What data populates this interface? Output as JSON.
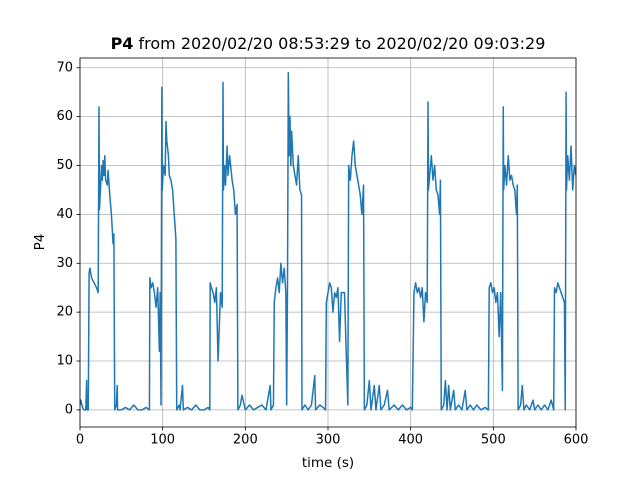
{
  "chart_data": {
    "type": "line",
    "title_bold": "P4",
    "title": "from 2020/02/20 08:53:29 to 2020/02/20 09:03:29",
    "xlabel": "time (s)",
    "ylabel": "P4",
    "xlim": [
      0,
      600
    ],
    "ylim": [
      -3.5,
      72
    ],
    "xticks": [
      0,
      100,
      200,
      300,
      400,
      500,
      600
    ],
    "yticks": [
      0,
      10,
      20,
      30,
      40,
      50,
      60,
      70
    ],
    "grid": true,
    "color": "#1f77b4",
    "x": [
      0,
      1,
      3,
      5,
      7,
      8,
      8.5,
      10,
      11,
      12,
      14,
      17,
      20,
      22,
      23,
      23.5,
      25,
      26,
      27,
      28,
      29,
      30,
      31,
      33,
      34,
      36,
      38,
      40,
      41,
      42,
      44,
      45,
      45.5,
      50,
      55,
      60,
      65,
      70,
      75,
      80,
      84,
      84.5,
      86,
      88,
      90,
      92,
      94,
      96,
      97,
      98,
      99,
      99.5,
      101,
      103,
      104,
      105,
      107,
      108,
      110,
      112,
      114,
      116,
      117,
      120,
      121,
      124,
      125,
      130,
      135,
      140,
      145,
      150,
      155,
      157,
      157.5,
      159,
      161,
      163,
      165,
      167,
      170,
      172,
      173,
      173.5,
      175,
      176,
      178,
      179,
      181,
      184,
      186,
      188,
      190,
      191,
      194,
      196,
      200,
      205,
      210,
      215,
      220,
      225,
      230,
      231,
      234,
      235,
      237,
      239,
      241,
      243,
      245,
      247,
      249,
      250,
      251,
      252,
      253,
      254,
      255,
      256,
      258,
      260,
      262,
      264,
      266,
      268,
      268.5,
      272,
      276,
      280,
      284,
      285,
      290,
      294,
      297,
      298,
      300,
      302,
      304,
      306,
      308,
      310,
      312,
      314,
      316,
      320,
      322,
      324,
      325,
      327,
      329,
      331,
      333,
      335,
      337,
      339,
      341,
      343,
      344,
      347,
      350,
      352,
      356,
      358,
      362,
      364,
      368,
      372,
      374,
      380,
      385,
      390,
      395,
      400,
      402,
      404,
      406,
      408,
      410,
      412,
      414,
      416,
      418,
      420,
      421,
      421.5,
      423,
      425,
      427,
      429,
      431,
      433,
      435,
      436,
      437,
      440,
      442,
      444,
      446,
      448,
      452,
      454,
      458,
      462,
      466,
      468,
      472,
      476,
      480,
      485,
      490,
      494,
      495,
      497,
      499,
      501,
      503,
      505,
      507,
      509,
      511,
      512,
      512.5,
      514,
      516,
      518,
      520,
      522,
      524,
      526,
      528,
      529,
      530,
      533,
      535,
      537,
      540,
      544,
      548,
      550,
      554,
      558,
      562,
      566,
      570,
      573,
      574,
      576,
      578,
      580,
      582,
      584,
      586,
      587,
      588,
      588.5,
      590,
      592,
      594,
      596,
      598,
      600
    ],
    "values": [
      1,
      2,
      0.5,
      0,
      0,
      6,
      0,
      0,
      28,
      29,
      27,
      26,
      25,
      24,
      62,
      41,
      46,
      50,
      47,
      51,
      48,
      52,
      47,
      46,
      49,
      44,
      40,
      34,
      36,
      0,
      1,
      5,
      0,
      0,
      0.5,
      0,
      1,
      0,
      0,
      0.5,
      0,
      27,
      25,
      26,
      24,
      21,
      25,
      12,
      24,
      1,
      66,
      45,
      50,
      48,
      59,
      55,
      52,
      48,
      47,
      45,
      40,
      35,
      0,
      1,
      0,
      5,
      0,
      0.5,
      0,
      1,
      0,
      0,
      0.5,
      0,
      26,
      25,
      24,
      22,
      25,
      10,
      24,
      21,
      67,
      45,
      50,
      46,
      54,
      48,
      52,
      47,
      45,
      40,
      42,
      0,
      1,
      3,
      0,
      1,
      0,
      0.5,
      1,
      0,
      5,
      0,
      1,
      22,
      25,
      27,
      24,
      30,
      26,
      29,
      24,
      1,
      25,
      69,
      52,
      60,
      50,
      57,
      50,
      48,
      46,
      52,
      45,
      44,
      0,
      1,
      0,
      1,
      7,
      0,
      1,
      0.5,
      0,
      22,
      24,
      26,
      25,
      20,
      24,
      23,
      25,
      14,
      24,
      24,
      12,
      1,
      50,
      47,
      52,
      55,
      50,
      48,
      46,
      44,
      40,
      46,
      0,
      1,
      6,
      0,
      5,
      0,
      5,
      0,
      1,
      4,
      0,
      1,
      0,
      1,
      0,
      0.5,
      0,
      24,
      26,
      24,
      25,
      23,
      25,
      18,
      24,
      22,
      63,
      45,
      48,
      52,
      47,
      50,
      45,
      44,
      40,
      47,
      0,
      1,
      6,
      0,
      5,
      0,
      4,
      0,
      1,
      0,
      4,
      0,
      1,
      0,
      1,
      0,
      0.5,
      0,
      25,
      26,
      24,
      25,
      22,
      24,
      15,
      24,
      4,
      62,
      45,
      50,
      46,
      52,
      47,
      48,
      46,
      45,
      40,
      46,
      0,
      1,
      5,
      0,
      1,
      0,
      2,
      0,
      1,
      0,
      1,
      0,
      2,
      0,
      25,
      24,
      26,
      25,
      24,
      23,
      22,
      0,
      65,
      45,
      52,
      47,
      54,
      45,
      50,
      48
    ]
  }
}
